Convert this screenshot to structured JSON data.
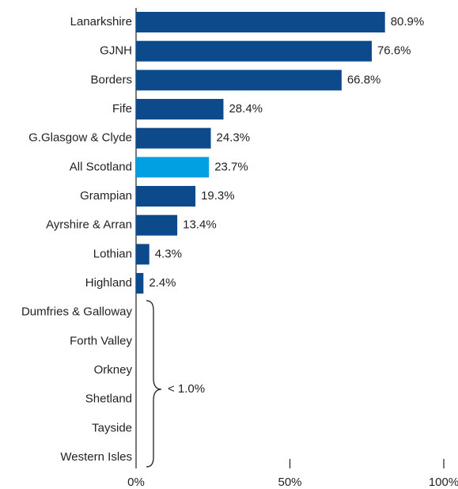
{
  "chart_data": {
    "type": "bar",
    "orientation": "horizontal",
    "categories": [
      "Lanarkshire",
      "GJNH",
      "Borders",
      "Fife",
      "G.Glasgow & Clyde",
      "All Scotland",
      "Grampian",
      "Ayrshire & Arran",
      "Lothian",
      "Highland",
      "Dumfries & Galloway",
      "Forth Valley",
      "Orkney",
      "Shetland",
      "Tayside",
      "Western Isles"
    ],
    "values": [
      80.9,
      76.6,
      66.8,
      28.4,
      24.3,
      23.7,
      19.3,
      13.4,
      4.3,
      2.4,
      null,
      null,
      null,
      null,
      null,
      null
    ],
    "value_labels": [
      "80.9%",
      "76.6%",
      "66.8%",
      "28.4%",
      "24.3%",
      "23.7%",
      "19.3%",
      "13.4%",
      "4.3%",
      "2.4%",
      null,
      null,
      null,
      null,
      null,
      null
    ],
    "colors": [
      "#0d4a8c",
      "#0d4a8c",
      "#0d4a8c",
      "#0d4a8c",
      "#0d4a8c",
      "#00a0e2",
      "#0d4a8c",
      "#0d4a8c",
      "#0d4a8c",
      "#0d4a8c",
      "#0d4a8c",
      "#0d4a8c",
      "#0d4a8c",
      "#0d4a8c",
      "#0d4a8c",
      "#0d4a8c"
    ],
    "annotation": "< 1.0%",
    "xlim": [
      0,
      100
    ],
    "xticks": [
      {
        "value": 0,
        "label": "0%"
      },
      {
        "value": 50,
        "label": "50%"
      },
      {
        "value": 100,
        "label": "100%"
      }
    ]
  }
}
